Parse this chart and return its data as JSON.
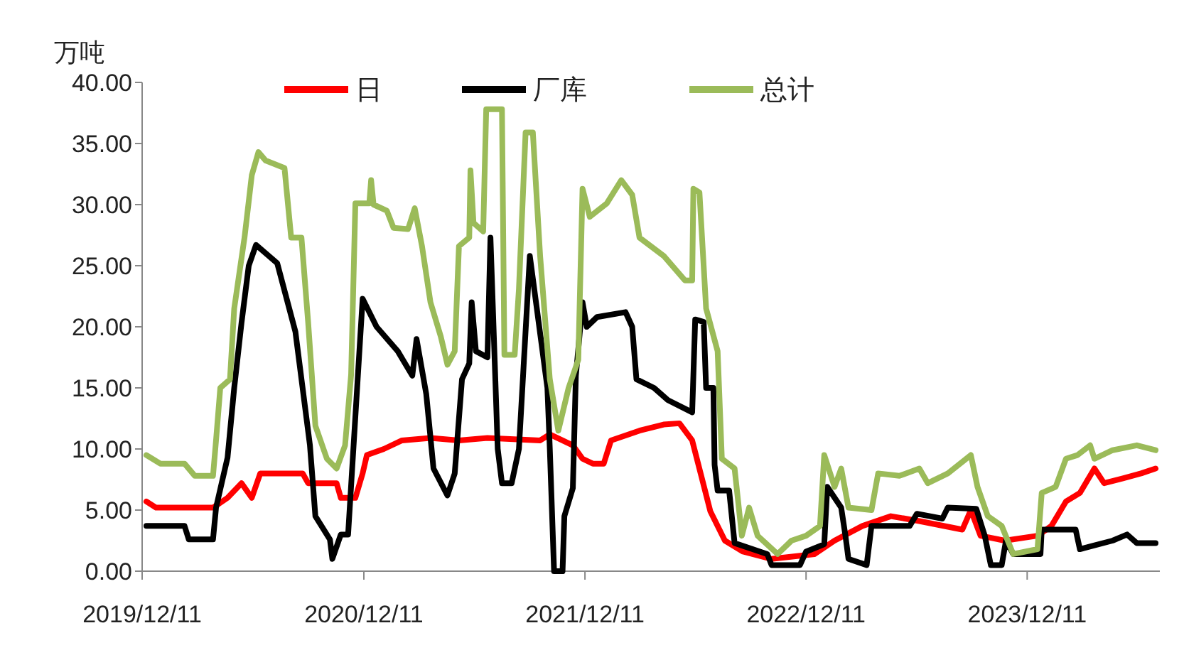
{
  "chart_data": {
    "type": "line",
    "ylabel": "万吨",
    "legend": "top",
    "grid": false,
    "xlim": [
      "2019-12-11",
      "2024-07-17"
    ],
    "xticks": [
      {
        "value": "2019-12-11",
        "label": "2019/12/11"
      },
      {
        "value": "2020-12-11",
        "label": "2020/12/11"
      },
      {
        "value": "2021-12-11",
        "label": "2021/12/11"
      },
      {
        "value": "2022-12-11",
        "label": "2022/12/11"
      },
      {
        "value": "2023-12-11",
        "label": "2023/12/11"
      }
    ],
    "ylim": [
      0,
      40
    ],
    "yticks": [
      {
        "value": 0,
        "label": "0.00"
      },
      {
        "value": 5,
        "label": "5.00"
      },
      {
        "value": 10,
        "label": "10.00"
      },
      {
        "value": 15,
        "label": "15.00"
      },
      {
        "value": 20,
        "label": "20.00"
      },
      {
        "value": 25,
        "label": "25.00"
      },
      {
        "value": 30,
        "label": "30.00"
      },
      {
        "value": 35,
        "label": "35.00"
      },
      {
        "value": 40,
        "label": "40.00"
      }
    ],
    "series": [
      {
        "name": "日",
        "color": "#ff0000",
        "x": [
          "2019-12-18",
          "2020-01-03",
          "2020-04-06",
          "2020-04-30",
          "2020-05-23",
          "2020-06-09",
          "2020-06-23",
          "2020-09-01",
          "2020-09-10",
          "2020-10-27",
          "2020-11-03",
          "2020-11-27",
          "2020-12-09",
          "2020-12-16",
          "2021-01-13",
          "2021-02-12",
          "2021-03-31",
          "2021-05-17",
          "2021-07-03",
          "2021-09-28",
          "2021-10-14",
          "2021-11-21",
          "2021-12-07",
          "2021-12-24",
          "2022-01-11",
          "2022-01-23",
          "2022-03-11",
          "2022-04-20",
          "2022-05-16",
          "2022-06-06",
          "2022-06-20",
          "2022-07-06",
          "2022-07-30",
          "2022-08-29",
          "2022-10-15",
          "2022-12-25",
          "2023-01-27",
          "2023-03-14",
          "2023-04-30",
          "2023-06-16",
          "2023-08-26",
          "2023-09-09",
          "2023-09-25",
          "2023-11-04",
          "2023-12-28",
          "2024-01-20",
          "2024-02-13",
          "2024-03-07",
          "2024-03-31",
          "2024-04-16",
          "2024-05-17",
          "2024-06-16",
          "2024-07-10"
        ],
        "values": [
          5.7,
          5.2,
          5.2,
          6,
          7.2,
          6,
          8,
          8,
          7.2,
          7.2,
          6,
          6,
          8,
          9.5,
          10,
          10.7,
          10.9,
          10.7,
          10.9,
          10.7,
          11.2,
          10.3,
          9.2,
          8.8,
          8.8,
          10.7,
          11.5,
          12,
          12.1,
          10.7,
          8,
          4.9,
          2.5,
          1.6,
          1,
          1.4,
          2.5,
          3.7,
          4.5,
          4.1,
          3.4,
          5,
          2.9,
          2.5,
          2.9,
          3.7,
          5.7,
          6.4,
          8.4,
          7.2,
          7.6,
          8,
          8.4
        ]
      },
      {
        "name": "厂库",
        "color": "#000000",
        "x": [
          "2019-12-18",
          "2020-02-19",
          "2020-02-26",
          "2020-04-06",
          "2020-04-11",
          "2020-04-30",
          "2020-05-11",
          "2020-05-23",
          "2020-06-04",
          "2020-06-16",
          "2020-07-21",
          "2020-08-20",
          "2020-09-13",
          "2020-09-22",
          "2020-10-16",
          "2020-10-20",
          "2020-11-03",
          "2020-11-15",
          "2020-12-09",
          "2021-01-01",
          "2021-02-05",
          "2021-03-01",
          "2021-03-08",
          "2021-03-24",
          "2021-04-05",
          "2021-04-28",
          "2021-05-10",
          "2021-05-22",
          "2021-06-03",
          "2021-06-07",
          "2021-06-14",
          "2021-07-03",
          "2021-07-08",
          "2021-07-20",
          "2021-07-27",
          "2021-08-12",
          "2021-08-24",
          "2021-09-11",
          "2021-10-10",
          "2021-10-14",
          "2021-10-21",
          "2021-11-04",
          "2021-11-07",
          "2021-11-21",
          "2021-11-26",
          "2021-12-07",
          "2021-12-14",
          "2021-12-31",
          "2022-02-16",
          "2022-02-27",
          "2022-03-06",
          "2022-04-04",
          "2022-04-27",
          "2022-06-06",
          "2022-06-11",
          "2022-06-25",
          "2022-06-29",
          "2022-07-11",
          "2022-07-13",
          "2022-07-18",
          "2022-08-06",
          "2022-08-15",
          "2022-10-08",
          "2022-10-15",
          "2022-12-01",
          "2022-12-11",
          "2023-01-10",
          "2023-01-15",
          "2023-02-07",
          "2023-02-14",
          "2023-02-19",
          "2023-03-21",
          "2023-03-29",
          "2023-05-31",
          "2023-06-12",
          "2023-07-24",
          "2023-08-02",
          "2023-09-18",
          "2023-10-02",
          "2023-10-12",
          "2023-10-30",
          "2023-11-06",
          "2023-11-18",
          "2024-01-02",
          "2024-01-04",
          "2024-02-29",
          "2024-03-07",
          "2024-04-30",
          "2024-05-24",
          "2024-06-09",
          "2024-07-10"
        ],
        "values": [
          3.7,
          3.7,
          2.6,
          2.6,
          5.2,
          9.3,
          15,
          20.3,
          25,
          26.7,
          25.2,
          19.6,
          10.3,
          4.5,
          2.6,
          1,
          3,
          3,
          22.3,
          20,
          18,
          16,
          19,
          14.5,
          8.4,
          6.2,
          8,
          15.7,
          17,
          22,
          18,
          17.5,
          27.3,
          10,
          7.2,
          7.2,
          10,
          25.8,
          15,
          10,
          0,
          0,
          4.5,
          6.8,
          16,
          22,
          20,
          20.8,
          21.2,
          20,
          15.7,
          15,
          14,
          13,
          20.6,
          20.4,
          15,
          15,
          8.7,
          6.6,
          6.6,
          2.3,
          1.4,
          0.5,
          0.5,
          1.6,
          2.2,
          6.9,
          5.2,
          2.9,
          1,
          0.5,
          3.7,
          3.7,
          4.7,
          4.3,
          5.2,
          5.1,
          2.9,
          0.5,
          0.5,
          2.5,
          1.4,
          1.4,
          3.4,
          3.4,
          1.8,
          2.5,
          3,
          2.3,
          2.3
        ]
      },
      {
        "name": "总计",
        "color": "#9bbb59",
        "x": [
          "2019-12-18",
          "2020-01-10",
          "2020-02-19",
          "2020-03-07",
          "2020-04-06",
          "2020-04-11",
          "2020-04-18",
          "2020-05-04",
          "2020-05-11",
          "2020-05-28",
          "2020-06-09",
          "2020-06-20",
          "2020-07-02",
          "2020-08-02",
          "2020-08-13",
          "2020-08-30",
          "2020-09-10",
          "2020-09-22",
          "2020-10-11",
          "2020-10-27",
          "2020-11-10",
          "2020-11-20",
          "2020-11-27",
          "2020-12-20",
          "2020-12-23",
          "2020-12-27",
          "2021-01-18",
          "2021-01-29",
          "2021-02-22",
          "2021-03-05",
          "2021-03-17",
          "2021-03-31",
          "2021-04-17",
          "2021-04-28",
          "2021-05-10",
          "2021-05-17",
          "2021-06-03",
          "2021-06-05",
          "2021-06-10",
          "2021-06-26",
          "2021-07-01",
          "2021-07-27",
          "2021-07-31",
          "2021-08-17",
          "2021-08-24",
          "2021-09-04",
          "2021-09-16",
          "2021-09-28",
          "2021-10-14",
          "2021-10-28",
          "2021-11-14",
          "2021-11-30",
          "2021-12-07",
          "2021-12-19",
          "2022-01-16",
          "2022-02-09",
          "2022-02-27",
          "2022-03-11",
          "2022-04-20",
          "2022-05-25",
          "2022-06-06",
          "2022-06-08",
          "2022-06-18",
          "2022-06-29",
          "2022-07-18",
          "2022-07-25",
          "2022-08-15",
          "2022-08-27",
          "2022-09-08",
          "2022-09-22",
          "2022-10-25",
          "2022-11-17",
          "2022-12-11",
          "2023-01-03",
          "2023-01-10",
          "2023-01-27",
          "2023-02-07",
          "2023-02-19",
          "2023-03-29",
          "2023-04-09",
          "2023-05-14",
          "2023-06-16",
          "2023-06-30",
          "2023-08-02",
          "2023-09-09",
          "2023-09-20",
          "2023-10-07",
          "2023-10-30",
          "2023-11-18",
          "2023-12-28",
          "2024-01-04",
          "2024-01-27",
          "2024-02-13",
          "2024-03-03",
          "2024-03-24",
          "2024-03-31",
          "2024-04-30",
          "2024-06-09",
          "2024-07-10"
        ],
        "values": [
          9.5,
          8.8,
          8.8,
          7.8,
          7.8,
          10.7,
          15,
          15.7,
          21.5,
          27.3,
          32.4,
          34.3,
          33.6,
          33,
          27.3,
          27.3,
          20.4,
          11.9,
          9.2,
          8.4,
          10.3,
          16.1,
          30.1,
          30.1,
          32,
          30,
          29.5,
          28.1,
          28,
          29.7,
          26.6,
          22,
          19.2,
          16.9,
          18,
          26.6,
          27.3,
          32.8,
          28.5,
          27.8,
          37.8,
          37.8,
          17.7,
          17.7,
          23.1,
          35.9,
          35.9,
          25.8,
          15.7,
          11.5,
          15,
          17.3,
          31.3,
          29,
          30.1,
          32,
          30.8,
          27.3,
          25.8,
          23.8,
          23.8,
          31.3,
          31,
          21.5,
          18,
          9.2,
          8.4,
          2.9,
          5.2,
          2.9,
          1.4,
          2.5,
          2.9,
          3.7,
          9.5,
          6.9,
          8.4,
          5.2,
          5,
          8,
          7.8,
          8.4,
          7.2,
          8,
          9.5,
          6.9,
          4.5,
          3.7,
          1.4,
          1.8,
          6.4,
          6.9,
          9.2,
          9.5,
          10.3,
          9.2,
          9.9,
          10.3,
          9.9
        ]
      }
    ]
  }
}
